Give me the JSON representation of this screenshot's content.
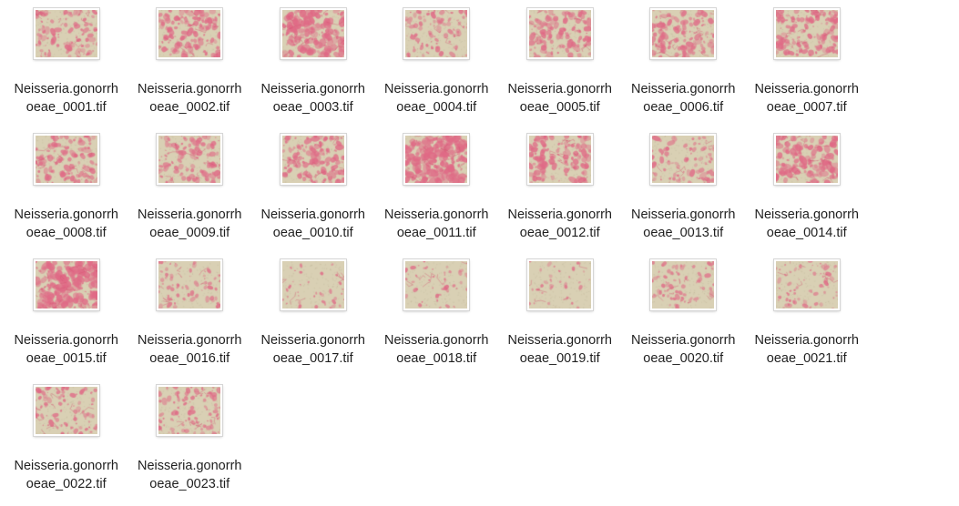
{
  "files": [
    {
      "line1": "Neisseria.gonorrh",
      "line2": "oeae_0001.tif",
      "density": 0.35
    },
    {
      "line1": "Neisseria.gonorrh",
      "line2": "oeae_0002.tif",
      "density": 0.5
    },
    {
      "line1": "Neisseria.gonorrh",
      "line2": "oeae_0003.tif",
      "density": 0.65
    },
    {
      "line1": "Neisseria.gonorrh",
      "line2": "oeae_0004.tif",
      "density": 0.3
    },
    {
      "line1": "Neisseria.gonorrh",
      "line2": "oeae_0005.tif",
      "density": 0.45
    },
    {
      "line1": "Neisseria.gonorrh",
      "line2": "oeae_0006.tif",
      "density": 0.45
    },
    {
      "line1": "Neisseria.gonorrh",
      "line2": "oeae_0007.tif",
      "density": 0.5
    },
    {
      "line1": "Neisseria.gonorrh",
      "line2": "oeae_0008.tif",
      "density": 0.45
    },
    {
      "line1": "Neisseria.gonorrh",
      "line2": "oeae_0009.tif",
      "density": 0.4
    },
    {
      "line1": "Neisseria.gonorrh",
      "line2": "oeae_0010.tif",
      "density": 0.5
    },
    {
      "line1": "Neisseria.gonorrh",
      "line2": "oeae_0011.tif",
      "density": 0.8
    },
    {
      "line1": "Neisseria.gonorrh",
      "line2": "oeae_0012.tif",
      "density": 0.5
    },
    {
      "line1": "Neisseria.gonorrh",
      "line2": "oeae_0013.tif",
      "density": 0.3
    },
    {
      "line1": "Neisseria.gonorrh",
      "line2": "oeae_0014.tif",
      "density": 0.55
    },
    {
      "line1": "Neisseria.gonorrh",
      "line2": "oeae_0015.tif",
      "density": 0.75
    },
    {
      "line1": "Neisseria.gonorrh",
      "line2": "oeae_0016.tif",
      "density": 0.2
    },
    {
      "line1": "Neisseria.gonorrh",
      "line2": "oeae_0017.tif",
      "density": 0.08
    },
    {
      "line1": "Neisseria.gonorrh",
      "line2": "oeae_0018.tif",
      "density": 0.12
    },
    {
      "line1": "Neisseria.gonorrh",
      "line2": "oeae_0019.tif",
      "density": 0.06
    },
    {
      "line1": "Neisseria.gonorrh",
      "line2": "oeae_0020.tif",
      "density": 0.22
    },
    {
      "line1": "Neisseria.gonorrh",
      "line2": "oeae_0021.tif",
      "density": 0.2
    },
    {
      "line1": "Neisseria.gonorrh",
      "line2": "oeae_0022.tif",
      "density": 0.3
    },
    {
      "line1": "Neisseria.gonorrh",
      "line2": "oeae_0023.tif",
      "density": 0.35
    }
  ],
  "colors": {
    "background_tan": "#d9d0b4",
    "stain_pink": "#e06a86",
    "label_text": "#1f1f1f"
  },
  "icons": {
    "thumbnail": "micrograph-thumbnail-icon"
  }
}
